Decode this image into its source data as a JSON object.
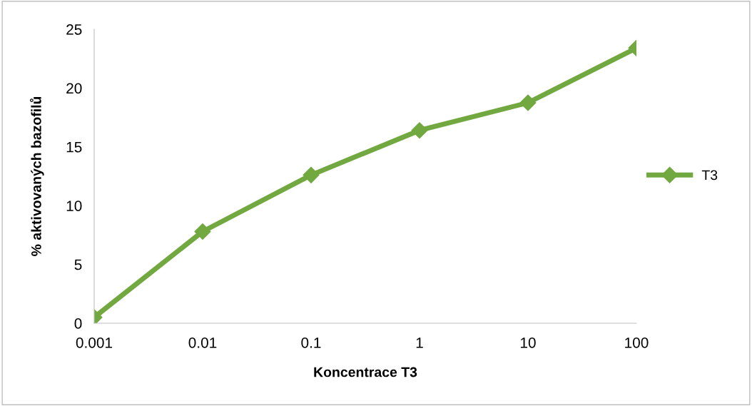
{
  "chart_data": {
    "type": "line",
    "xlabel": "Koncentrace T3",
    "ylabel": "% aktivovaných bazofilů",
    "categories": [
      "0.001",
      "0.01",
      "0.1",
      "1",
      "10",
      "100"
    ],
    "series": [
      {
        "name": "T3",
        "color": "#71a840",
        "values": [
          0.5,
          7.8,
          12.6,
          16.4,
          18.75,
          23.4
        ]
      }
    ],
    "ylim": [
      0,
      25
    ],
    "yticks": [
      0,
      5,
      10,
      15,
      20,
      25
    ],
    "grid": false,
    "legend": "right",
    "marker": "diamond",
    "line_style": "solid"
  }
}
